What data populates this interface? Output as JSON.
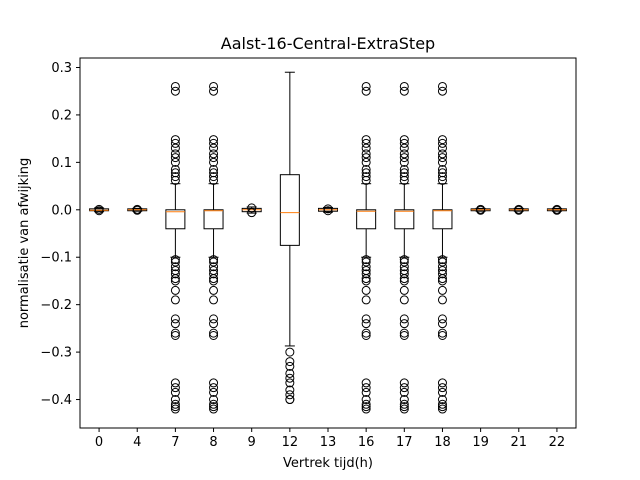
{
  "chart_data": {
    "type": "box",
    "title": "Aalst-16-Central-ExtraStep",
    "xlabel": "Vertrek tijd(h)",
    "ylabel": "normalisatie van afwijking",
    "ylim": [
      -0.46,
      0.32
    ],
    "yticks": [
      0.3,
      0.2,
      0.1,
      0.0,
      -0.1,
      -0.2,
      -0.3,
      -0.4
    ],
    "ytick_labels": [
      "0.3",
      "0.2",
      "0.1",
      "0.0",
      "−0.1",
      "−0.2",
      "−0.3",
      "−0.4"
    ],
    "categories": [
      "0",
      "4",
      "7",
      "8",
      "9",
      "12",
      "13",
      "16",
      "17",
      "18",
      "19",
      "21",
      "22"
    ],
    "boxes": [
      {
        "q1": -0.002,
        "median": -0.001,
        "q3": 0.002,
        "whislo": -0.004,
        "whishi": 0.004,
        "fliers": [
          0.001,
          -0.002
        ]
      },
      {
        "q1": -0.002,
        "median": 0.0,
        "q3": 0.002,
        "whislo": -0.003,
        "whishi": 0.003,
        "fliers": [
          0.001,
          -0.001
        ]
      },
      {
        "q1": -0.04,
        "median": -0.004,
        "q3": 0.0,
        "whislo": -0.1,
        "whishi": 0.055,
        "fliers": [
          0.26,
          0.25,
          0.148,
          0.14,
          0.13,
          0.118,
          0.11,
          0.1,
          0.085,
          0.078,
          0.07,
          0.062,
          -0.105,
          -0.11,
          -0.12,
          -0.128,
          -0.135,
          -0.145,
          -0.15,
          -0.17,
          -0.19,
          -0.23,
          -0.24,
          -0.26,
          -0.265,
          -0.365,
          -0.375,
          -0.385,
          -0.4,
          -0.41,
          -0.415,
          -0.42
        ]
      },
      {
        "q1": -0.04,
        "median": -0.002,
        "q3": 0.0,
        "whislo": -0.1,
        "whishi": 0.055,
        "fliers": [
          0.26,
          0.25,
          0.148,
          0.14,
          0.13,
          0.118,
          0.11,
          0.1,
          0.085,
          0.078,
          0.07,
          0.062,
          -0.105,
          -0.11,
          -0.12,
          -0.128,
          -0.135,
          -0.145,
          -0.15,
          -0.17,
          -0.19,
          -0.23,
          -0.24,
          -0.26,
          -0.265,
          -0.365,
          -0.375,
          -0.385,
          -0.4,
          -0.41,
          -0.415,
          -0.42
        ]
      },
      {
        "q1": -0.004,
        "median": 0.0,
        "q3": 0.003,
        "whislo": -0.007,
        "whishi": 0.006,
        "fliers": [
          0.004,
          -0.006
        ]
      },
      {
        "q1": -0.075,
        "median": -0.006,
        "q3": 0.074,
        "whislo": -0.287,
        "whishi": 0.29,
        "fliers": [
          -0.3,
          -0.32,
          -0.33,
          -0.345,
          -0.355,
          -0.365,
          -0.38,
          -0.39,
          -0.4,
          -0.4
        ]
      },
      {
        "q1": -0.003,
        "median": 0.0,
        "q3": 0.003,
        "whislo": -0.005,
        "whishi": 0.005,
        "fliers": [
          0.002,
          -0.002
        ]
      },
      {
        "q1": -0.04,
        "median": -0.003,
        "q3": 0.0,
        "whislo": -0.1,
        "whishi": 0.055,
        "fliers": [
          0.26,
          0.25,
          0.148,
          0.14,
          0.13,
          0.118,
          0.11,
          0.1,
          0.085,
          0.078,
          0.07,
          0.062,
          -0.105,
          -0.11,
          -0.12,
          -0.128,
          -0.135,
          -0.145,
          -0.15,
          -0.17,
          -0.19,
          -0.23,
          -0.24,
          -0.26,
          -0.265,
          -0.365,
          -0.375,
          -0.385,
          -0.4,
          -0.41,
          -0.415,
          -0.42
        ]
      },
      {
        "q1": -0.04,
        "median": -0.003,
        "q3": 0.0,
        "whislo": -0.1,
        "whishi": 0.055,
        "fliers": [
          0.26,
          0.25,
          0.148,
          0.14,
          0.13,
          0.118,
          0.11,
          0.1,
          0.085,
          0.078,
          0.07,
          0.062,
          -0.105,
          -0.11,
          -0.12,
          -0.128,
          -0.135,
          -0.145,
          -0.15,
          -0.17,
          -0.19,
          -0.23,
          -0.24,
          -0.26,
          -0.265,
          -0.365,
          -0.375,
          -0.385,
          -0.4,
          -0.41,
          -0.415,
          -0.42
        ]
      },
      {
        "q1": -0.04,
        "median": -0.002,
        "q3": 0.0,
        "whislo": -0.1,
        "whishi": 0.055,
        "fliers": [
          0.26,
          0.25,
          0.148,
          0.14,
          0.13,
          0.118,
          0.11,
          0.1,
          0.085,
          0.078,
          0.07,
          0.062,
          -0.105,
          -0.11,
          -0.12,
          -0.128,
          -0.135,
          -0.145,
          -0.15,
          -0.17,
          -0.19,
          -0.23,
          -0.24,
          -0.26,
          -0.265,
          -0.365,
          -0.375,
          -0.385,
          -0.4,
          -0.41,
          -0.415,
          -0.42
        ]
      },
      {
        "q1": -0.002,
        "median": 0.0,
        "q3": 0.002,
        "whislo": -0.003,
        "whishi": 0.003,
        "fliers": [
          0.001,
          -0.001
        ]
      },
      {
        "q1": -0.002,
        "median": 0.0,
        "q3": 0.002,
        "whislo": -0.003,
        "whishi": 0.003,
        "fliers": [
          0.001,
          -0.001
        ]
      },
      {
        "q1": -0.002,
        "median": 0.0,
        "q3": 0.002,
        "whislo": -0.003,
        "whishi": 0.003,
        "fliers": [
          0.001,
          -0.001
        ]
      }
    ],
    "colors": {
      "box": "#000000",
      "median": "#ff7f0e",
      "flier": "#000000",
      "background": "#ffffff"
    },
    "grid": false,
    "legend": "none"
  }
}
